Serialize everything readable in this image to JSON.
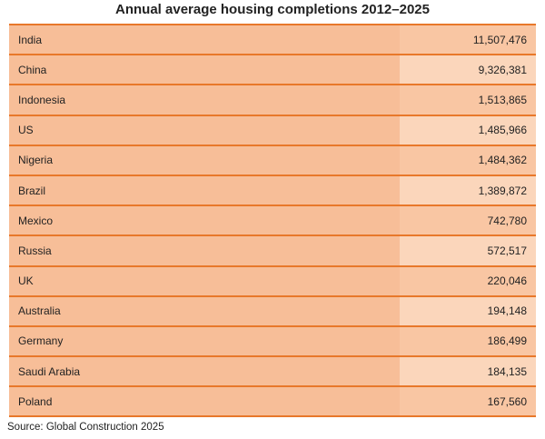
{
  "title": "Annual average housing completions 2012–2025",
  "table": {
    "rows": [
      [
        "India",
        "11,507,476"
      ],
      [
        "China",
        "9,326,381"
      ],
      [
        "Indonesia",
        "1,513,865"
      ],
      [
        "US",
        "1,485,966"
      ],
      [
        "Nigeria",
        "1,484,362"
      ],
      [
        "Brazil",
        "1,389,872"
      ],
      [
        "Mexico",
        "742,780"
      ],
      [
        "Russia",
        "572,517"
      ],
      [
        "UK",
        "220,046"
      ],
      [
        "Australia",
        "194,148"
      ],
      [
        "Germany",
        "186,499"
      ],
      [
        "Saudi Arabia",
        "184,135"
      ],
      [
        "Poland",
        "167,560"
      ]
    ]
  },
  "source": "Source: Global Construction 2025"
}
